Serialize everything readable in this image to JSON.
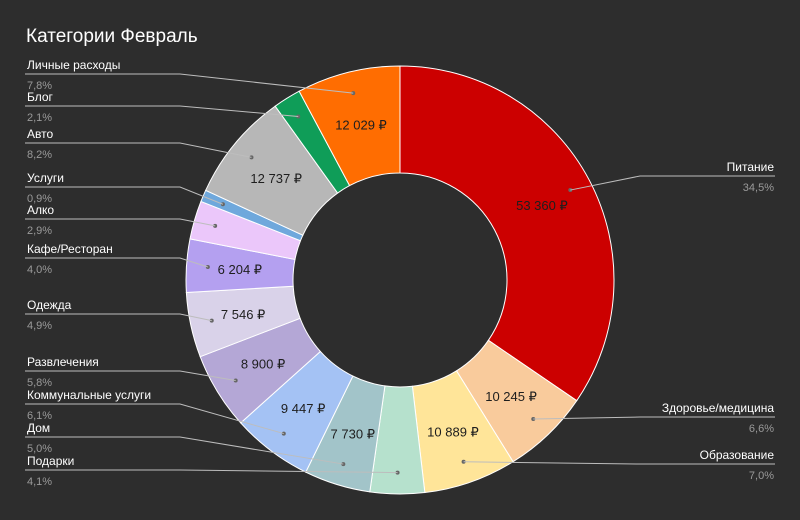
{
  "title": "Категории Февраль",
  "chart_data": {
    "type": "donut",
    "title": "Категории Февраль",
    "legend_position": "callouts",
    "slices": [
      {
        "name": "Питание",
        "percent": "34,5%",
        "value_label": "53 360 ₽",
        "pct": 34.5,
        "color": "#cc0000"
      },
      {
        "name": "Здоровье/медицина",
        "percent": "6,6%",
        "value_label": "10 245 ₽",
        "pct": 6.6,
        "color": "#f9cb9c"
      },
      {
        "name": "Образование",
        "percent": "7,0%",
        "value_label": "10 889 ₽",
        "pct": 7.0,
        "color": "#ffe599"
      },
      {
        "name": "Подарки",
        "percent": "4,1%",
        "value_label": "",
        "pct": 4.1,
        "color": "#b6e1cd"
      },
      {
        "name": "Дом",
        "percent": "5,0%",
        "value_label": "7 730 ₽",
        "pct": 5.0,
        "color": "#a2c4c9"
      },
      {
        "name": "Коммунальные услуги",
        "percent": "6,1%",
        "value_label": "9 447 ₽",
        "pct": 6.1,
        "color": "#a4c2f4"
      },
      {
        "name": "Развлечения",
        "percent": "5,8%",
        "value_label": "8 900 ₽",
        "pct": 5.8,
        "color": "#b4a7d6"
      },
      {
        "name": "Одежда",
        "percent": "4,9%",
        "value_label": "7 546 ₽",
        "pct": 4.9,
        "color": "#d9d2e9"
      },
      {
        "name": "Кафе/Ресторан",
        "percent": "4,0%",
        "value_label": "6 204 ₽",
        "pct": 4.0,
        "color": "#b4a0f0"
      },
      {
        "name": "Алко",
        "percent": "2,9%",
        "value_label": "",
        "pct": 2.9,
        "color": "#ebc7fa"
      },
      {
        "name": "Услуги",
        "percent": "0,9%",
        "value_label": "",
        "pct": 0.9,
        "color": "#6fa8dc"
      },
      {
        "name": "Авто",
        "percent": "8,2%",
        "value_label": "12 737 ₽",
        "pct": 8.2,
        "color": "#b7b7b7"
      },
      {
        "name": "Блог",
        "percent": "2,1%",
        "value_label": "",
        "pct": 2.1,
        "color": "#0f9d58"
      },
      {
        "name": "Личные расходы",
        "percent": "7,8%",
        "value_label": "12 029 ₽",
        "pct": 7.8,
        "color": "#ff6d01"
      }
    ]
  }
}
